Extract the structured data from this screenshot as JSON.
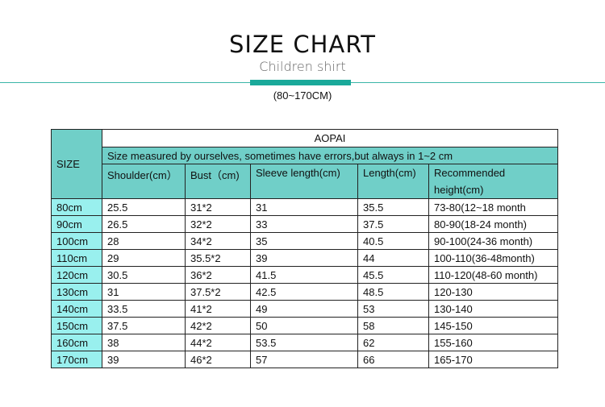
{
  "title": "SIZE CHART",
  "subtitle": "Children shirt",
  "range": "(80~170CM)",
  "table": {
    "size_label": "SIZE",
    "brand": "AOPAI",
    "note": "Size measured by ourselves, sometimes have errors,but always in 1~2 cm",
    "headers": [
      "Shoulder(cm）",
      "Bust（cm)",
      "Sleeve length(cm)",
      "Length(cm)",
      "Recommended height(cm)"
    ],
    "rows": [
      [
        "80cm",
        "25.5",
        "31*2",
        "31",
        "35.5",
        "73-80(12~18 month"
      ],
      [
        "90cm",
        "26.5",
        "32*2",
        "33",
        "37.5",
        "80-90(18-24 month)"
      ],
      [
        "100cm",
        "28",
        "34*2",
        "35",
        "40.5",
        "90-100(24-36 month)"
      ],
      [
        "110cm",
        "29",
        "35.5*2",
        "39",
        "44",
        "100-110(36-48month)"
      ],
      [
        "120cm",
        "30.5",
        "36*2",
        "41.5",
        "45.5",
        "110-120(48-60 month)"
      ],
      [
        "130cm",
        "31",
        "37.5*2",
        "42.5",
        "48.5",
        "120-130"
      ],
      [
        "140cm",
        "33.5",
        "41*2",
        "49",
        "53",
        "130-140"
      ],
      [
        "150cm",
        "37.5",
        "42*2",
        "50",
        "58",
        "145-150"
      ],
      [
        "160cm",
        "38",
        "44*2",
        "53.5",
        "62",
        "155-160"
      ],
      [
        "170cm",
        "39",
        "46*2",
        "57",
        "66",
        "165-170"
      ]
    ]
  },
  "colors": {
    "accent": "#1aa99a",
    "header": "#70cfc8",
    "size_cell": "#99f0ee"
  }
}
